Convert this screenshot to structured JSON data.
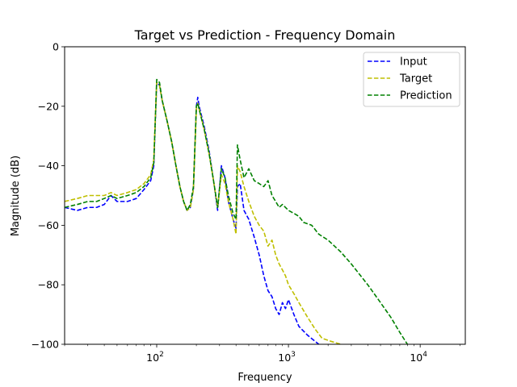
{
  "chart_data": {
    "type": "line",
    "title": "Target vs Prediction - Frequency Domain",
    "xlabel": "Frequency",
    "ylabel": "Magnitude (dB)",
    "x_scale": "log",
    "xlim": [
      20,
      22000
    ],
    "ylim": [
      -100,
      0
    ],
    "yticks": [
      0,
      -20,
      -40,
      -60,
      -80,
      -100
    ],
    "xticks": [
      {
        "value": 100,
        "base": "10",
        "exp": "2"
      },
      {
        "value": 1000,
        "base": "10",
        "exp": "3"
      },
      {
        "value": 10000,
        "base": "10",
        "exp": "4"
      }
    ],
    "grid": false,
    "legend_position": "top-right",
    "series": [
      {
        "name": "Input",
        "color": "#0000ff",
        "points": [
          [
            20,
            -54
          ],
          [
            25,
            -55
          ],
          [
            30,
            -54
          ],
          [
            35,
            -54
          ],
          [
            40,
            -53
          ],
          [
            45,
            -50
          ],
          [
            50,
            -52
          ],
          [
            60,
            -52
          ],
          [
            70,
            -51
          ],
          [
            80,
            -48
          ],
          [
            90,
            -45
          ],
          [
            95,
            -40
          ],
          [
            100,
            -12
          ],
          [
            105,
            -13
          ],
          [
            110,
            -18
          ],
          [
            120,
            -25
          ],
          [
            130,
            -32
          ],
          [
            140,
            -40
          ],
          [
            150,
            -47
          ],
          [
            160,
            -52
          ],
          [
            170,
            -55
          ],
          [
            180,
            -54
          ],
          [
            190,
            -48
          ],
          [
            200,
            -20
          ],
          [
            205,
            -17
          ],
          [
            210,
            -20
          ],
          [
            230,
            -27
          ],
          [
            250,
            -35
          ],
          [
            270,
            -45
          ],
          [
            290,
            -55
          ],
          [
            310,
            -40
          ],
          [
            330,
            -44
          ],
          [
            350,
            -52
          ],
          [
            380,
            -58
          ],
          [
            400,
            -61
          ],
          [
            410,
            -47
          ],
          [
            430,
            -46
          ],
          [
            460,
            -55
          ],
          [
            500,
            -58
          ],
          [
            550,
            -64
          ],
          [
            600,
            -70
          ],
          [
            650,
            -77
          ],
          [
            700,
            -82
          ],
          [
            750,
            -84
          ],
          [
            800,
            -88
          ],
          [
            850,
            -90
          ],
          [
            900,
            -86
          ],
          [
            950,
            -88
          ],
          [
            1000,
            -85
          ],
          [
            1100,
            -90
          ],
          [
            1200,
            -94
          ],
          [
            1400,
            -97
          ],
          [
            1700,
            -100
          ]
        ]
      },
      {
        "name": "Target",
        "color": "#bfbf00",
        "points": [
          [
            20,
            -52
          ],
          [
            25,
            -51
          ],
          [
            30,
            -50
          ],
          [
            35,
            -50
          ],
          [
            40,
            -50
          ],
          [
            45,
            -49
          ],
          [
            50,
            -50
          ],
          [
            60,
            -49
          ],
          [
            70,
            -48
          ],
          [
            80,
            -46
          ],
          [
            90,
            -43
          ],
          [
            95,
            -38
          ],
          [
            100,
            -12
          ],
          [
            105,
            -13
          ],
          [
            110,
            -18
          ],
          [
            120,
            -25
          ],
          [
            130,
            -32
          ],
          [
            140,
            -40
          ],
          [
            150,
            -47
          ],
          [
            160,
            -52
          ],
          [
            170,
            -55
          ],
          [
            180,
            -54
          ],
          [
            190,
            -48
          ],
          [
            200,
            -21
          ],
          [
            205,
            -19
          ],
          [
            210,
            -21
          ],
          [
            230,
            -28
          ],
          [
            250,
            -36
          ],
          [
            270,
            -45
          ],
          [
            290,
            -54
          ],
          [
            310,
            -43
          ],
          [
            330,
            -46
          ],
          [
            350,
            -52
          ],
          [
            380,
            -58
          ],
          [
            400,
            -63
          ],
          [
            410,
            -40
          ],
          [
            430,
            -42
          ],
          [
            460,
            -47
          ],
          [
            500,
            -52
          ],
          [
            550,
            -57
          ],
          [
            600,
            -60
          ],
          [
            650,
            -62
          ],
          [
            700,
            -67
          ],
          [
            750,
            -65
          ],
          [
            800,
            -70
          ],
          [
            850,
            -73
          ],
          [
            900,
            -75
          ],
          [
            950,
            -77
          ],
          [
            1000,
            -80
          ],
          [
            1100,
            -83
          ],
          [
            1200,
            -86
          ],
          [
            1400,
            -91
          ],
          [
            1600,
            -95
          ],
          [
            1800,
            -98
          ],
          [
            2100,
            -99
          ],
          [
            2500,
            -100
          ]
        ]
      },
      {
        "name": "Prediction",
        "color": "#008000",
        "points": [
          [
            20,
            -54
          ],
          [
            25,
            -53
          ],
          [
            30,
            -52
          ],
          [
            35,
            -52
          ],
          [
            40,
            -51
          ],
          [
            45,
            -50
          ],
          [
            50,
            -51
          ],
          [
            60,
            -50
          ],
          [
            70,
            -49
          ],
          [
            80,
            -47
          ],
          [
            90,
            -44
          ],
          [
            95,
            -39
          ],
          [
            100,
            -11
          ],
          [
            105,
            -12
          ],
          [
            110,
            -18
          ],
          [
            120,
            -25
          ],
          [
            130,
            -32
          ],
          [
            140,
            -40
          ],
          [
            150,
            -47
          ],
          [
            160,
            -52
          ],
          [
            170,
            -55
          ],
          [
            180,
            -53
          ],
          [
            190,
            -47
          ],
          [
            200,
            -20
          ],
          [
            205,
            -19
          ],
          [
            210,
            -21
          ],
          [
            230,
            -28
          ],
          [
            250,
            -36
          ],
          [
            270,
            -45
          ],
          [
            290,
            -54
          ],
          [
            310,
            -41
          ],
          [
            330,
            -44
          ],
          [
            350,
            -50
          ],
          [
            380,
            -56
          ],
          [
            400,
            -58
          ],
          [
            410,
            -33
          ],
          [
            430,
            -38
          ],
          [
            460,
            -44
          ],
          [
            500,
            -41
          ],
          [
            550,
            -45
          ],
          [
            600,
            -46
          ],
          [
            650,
            -47
          ],
          [
            700,
            -45
          ],
          [
            750,
            -50
          ],
          [
            800,
            -52
          ],
          [
            850,
            -54
          ],
          [
            900,
            -53
          ],
          [
            1000,
            -55
          ],
          [
            1100,
            -56
          ],
          [
            1200,
            -57
          ],
          [
            1300,
            -59
          ],
          [
            1500,
            -60
          ],
          [
            1700,
            -63
          ],
          [
            2000,
            -65
          ],
          [
            2500,
            -69
          ],
          [
            3000,
            -73
          ],
          [
            4000,
            -80
          ],
          [
            5000,
            -86
          ],
          [
            6000,
            -91
          ],
          [
            7000,
            -96
          ],
          [
            8000,
            -100
          ]
        ]
      }
    ]
  }
}
